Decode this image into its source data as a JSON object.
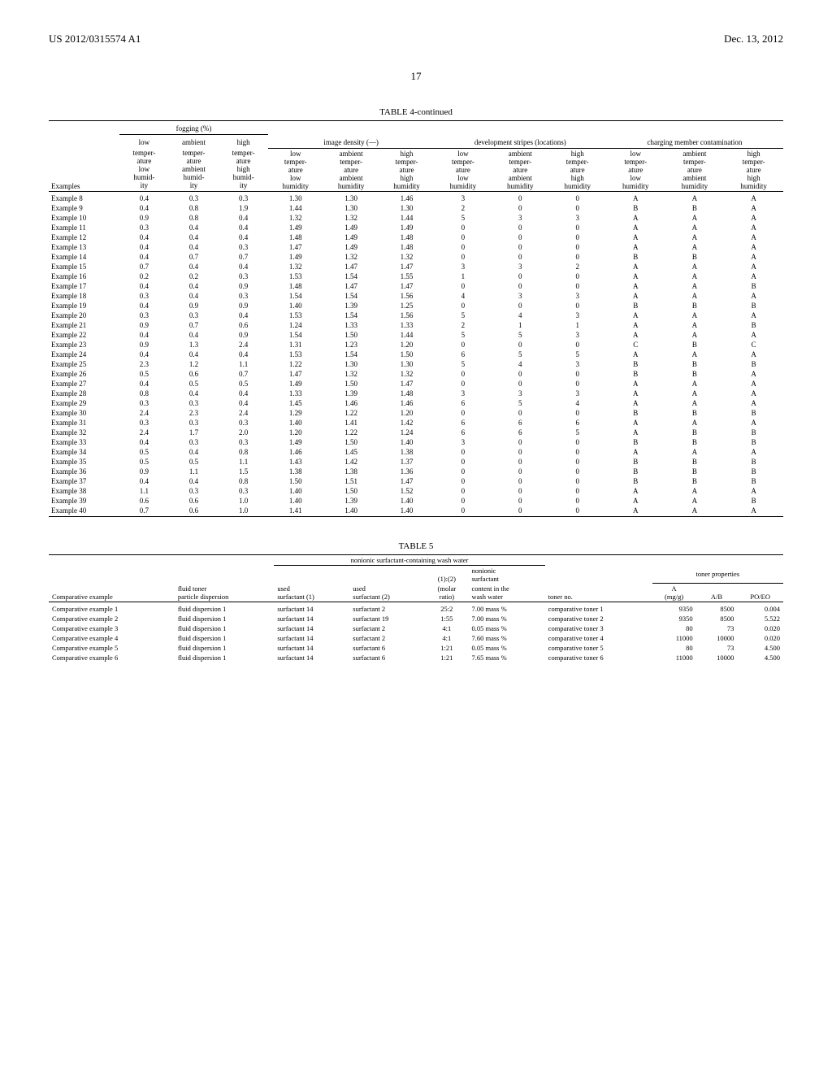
{
  "header": {
    "left": "US 2012/0315574 A1",
    "right": "Dec. 13, 2012",
    "page": "17"
  },
  "table4": {
    "title": "TABLE 4-continued",
    "groups": {
      "fogging": "fogging (%)",
      "density": "image density (—)",
      "stripes": "development stripes (locations)",
      "charging": "charging member contamination",
      "low": "low",
      "ambient": "ambient",
      "high": "high"
    },
    "subhead": {
      "examples": "Examples",
      "ltlh": "temper-\nature\nlow\nhumid-\nity",
      "atah": "temper-\nature\nambient\nhumid-\nity",
      "hthh": "temper-\nature\nhigh\nhumid-\nity",
      "ltlh2": "low\ntemper-\nature\nlow\nhumidity",
      "atah2": "ambient\ntemper-\nature\nambient\nhumidity",
      "hthh2": "high\ntemper-\nature\nhigh\nhumidity"
    },
    "rows": [
      [
        "Example 8",
        "0.4",
        "0.3",
        "0.3",
        "1.30",
        "1.30",
        "1.46",
        "3",
        "0",
        "0",
        "A",
        "A",
        "A"
      ],
      [
        "Example 9",
        "0.4",
        "0.8",
        "1.9",
        "1.44",
        "1.30",
        "1.30",
        "2",
        "0",
        "0",
        "B",
        "B",
        "A"
      ],
      [
        "Example 10",
        "0.9",
        "0.8",
        "0.4",
        "1.32",
        "1.32",
        "1.44",
        "5",
        "3",
        "3",
        "A",
        "A",
        "A"
      ],
      [
        "Example 11",
        "0.3",
        "0.4",
        "0.4",
        "1.49",
        "1.49",
        "1.49",
        "0",
        "0",
        "0",
        "A",
        "A",
        "A"
      ],
      [
        "Example 12",
        "0.4",
        "0.4",
        "0.4",
        "1.48",
        "1.49",
        "1.48",
        "0",
        "0",
        "0",
        "A",
        "A",
        "A"
      ],
      [
        "Example 13",
        "0.4",
        "0.4",
        "0.3",
        "1.47",
        "1.49",
        "1.48",
        "0",
        "0",
        "0",
        "A",
        "A",
        "A"
      ],
      [
        "Example 14",
        "0.4",
        "0.7",
        "0.7",
        "1.49",
        "1.32",
        "1.32",
        "0",
        "0",
        "0",
        "B",
        "B",
        "A"
      ],
      [
        "Example 15",
        "0.7",
        "0.4",
        "0.4",
        "1.32",
        "1.47",
        "1.47",
        "3",
        "3",
        "2",
        "A",
        "A",
        "A"
      ],
      [
        "Example 16",
        "0.2",
        "0.2",
        "0.3",
        "1.53",
        "1.54",
        "1.55",
        "1",
        "0",
        "0",
        "A",
        "A",
        "A"
      ],
      [
        "Example 17",
        "0.4",
        "0.4",
        "0.9",
        "1.48",
        "1.47",
        "1.47",
        "0",
        "0",
        "0",
        "A",
        "A",
        "B"
      ],
      [
        "Example 18",
        "0.3",
        "0.4",
        "0.3",
        "1.54",
        "1.54",
        "1.56",
        "4",
        "3",
        "3",
        "A",
        "A",
        "A"
      ],
      [
        "Example 19",
        "0.4",
        "0.9",
        "0.9",
        "1.40",
        "1.39",
        "1.25",
        "0",
        "0",
        "0",
        "B",
        "B",
        "B"
      ],
      [
        "Example 20",
        "0.3",
        "0.3",
        "0.4",
        "1.53",
        "1.54",
        "1.56",
        "5",
        "4",
        "3",
        "A",
        "A",
        "A"
      ],
      [
        "Example 21",
        "0.9",
        "0.7",
        "0.6",
        "1.24",
        "1.33",
        "1.33",
        "2",
        "1",
        "1",
        "A",
        "A",
        "B"
      ],
      [
        "Example 22",
        "0.4",
        "0.4",
        "0.9",
        "1.54",
        "1.50",
        "1.44",
        "5",
        "5",
        "3",
        "A",
        "A",
        "A"
      ],
      [
        "Example 23",
        "0.9",
        "1.3",
        "2.4",
        "1.31",
        "1.23",
        "1.20",
        "0",
        "0",
        "0",
        "C",
        "B",
        "C"
      ],
      [
        "Example 24",
        "0.4",
        "0.4",
        "0.4",
        "1.53",
        "1.54",
        "1.50",
        "6",
        "5",
        "5",
        "A",
        "A",
        "A"
      ],
      [
        "Example 25",
        "2.3",
        "1.2",
        "1.1",
        "1.22",
        "1.30",
        "1.30",
        "5",
        "4",
        "3",
        "B",
        "B",
        "B"
      ],
      [
        "Example 26",
        "0.5",
        "0.6",
        "0.7",
        "1.47",
        "1.32",
        "1.32",
        "0",
        "0",
        "0",
        "B",
        "B",
        "A"
      ],
      [
        "Example 27",
        "0.4",
        "0.5",
        "0.5",
        "1.49",
        "1.50",
        "1.47",
        "0",
        "0",
        "0",
        "A",
        "A",
        "A"
      ],
      [
        "Example 28",
        "0.8",
        "0.4",
        "0.4",
        "1.33",
        "1.39",
        "1.48",
        "3",
        "3",
        "3",
        "A",
        "A",
        "A"
      ],
      [
        "Example 29",
        "0.3",
        "0.3",
        "0.4",
        "1.45",
        "1.46",
        "1.46",
        "6",
        "5",
        "4",
        "A",
        "A",
        "A"
      ],
      [
        "Example 30",
        "2.4",
        "2.3",
        "2.4",
        "1.29",
        "1.22",
        "1.20",
        "0",
        "0",
        "0",
        "B",
        "B",
        "B"
      ],
      [
        "Example 31",
        "0.3",
        "0.3",
        "0.3",
        "1.40",
        "1.41",
        "1.42",
        "6",
        "6",
        "6",
        "A",
        "A",
        "A"
      ],
      [
        "Example 32",
        "2.4",
        "1.7",
        "2.0",
        "1.20",
        "1.22",
        "1.24",
        "6",
        "6",
        "5",
        "A",
        "B",
        "B"
      ],
      [
        "Example 33",
        "0.4",
        "0.3",
        "0.3",
        "1.49",
        "1.50",
        "1.40",
        "3",
        "0",
        "0",
        "B",
        "B",
        "B"
      ],
      [
        "Example 34",
        "0.5",
        "0.4",
        "0.8",
        "1.46",
        "1.45",
        "1.38",
        "0",
        "0",
        "0",
        "A",
        "A",
        "A"
      ],
      [
        "Example 35",
        "0.5",
        "0.5",
        "1.1",
        "1.43",
        "1.42",
        "1.37",
        "0",
        "0",
        "0",
        "B",
        "B",
        "B"
      ],
      [
        "Example 36",
        "0.9",
        "1.1",
        "1.5",
        "1.38",
        "1.38",
        "1.36",
        "0",
        "0",
        "0",
        "B",
        "B",
        "B"
      ],
      [
        "Example 37",
        "0.4",
        "0.4",
        "0.8",
        "1.50",
        "1.51",
        "1.47",
        "0",
        "0",
        "0",
        "B",
        "B",
        "B"
      ],
      [
        "Example 38",
        "1.1",
        "0.3",
        "0.3",
        "1.40",
        "1.50",
        "1.52",
        "0",
        "0",
        "0",
        "A",
        "A",
        "A"
      ],
      [
        "Example 39",
        "0.6",
        "0.6",
        "1.0",
        "1.40",
        "1.39",
        "1.40",
        "0",
        "0",
        "0",
        "A",
        "A",
        "B"
      ],
      [
        "Example 40",
        "0.7",
        "0.6",
        "1.0",
        "1.41",
        "1.40",
        "1.40",
        "0",
        "0",
        "0",
        "A",
        "A",
        "A"
      ]
    ]
  },
  "table5": {
    "title": "TABLE 5",
    "hdr": {
      "wash": "nonionic surfactant-containing wash water",
      "toner_props": "toner properties",
      "comp": "Comparative example",
      "fluid": "fluid toner\nparticle dispersion",
      "s1": "used\nsurfactant (1)",
      "s2": "used\nsurfactant (2)",
      "ratio": "(1):(2)\n(molar\nratio)",
      "content": "nonionic\nsurfactant\ncontent in the\nwash water",
      "tno": "toner no.",
      "A": "A\n(mg/g)",
      "AB": "A/B",
      "PO": "PO/EO"
    },
    "rows": [
      [
        "Comparative example 1",
        "fluid dispersion 1",
        "surfactant 14",
        "surfactant 2",
        "25:2",
        "7.00 mass %",
        "comparative toner 1",
        "9350",
        "8500",
        "0.004"
      ],
      [
        "Comparative example 2",
        "fluid dispersion 1",
        "surfactant 14",
        "surfactant 19",
        "1:55",
        "7.00 mass %",
        "comparative toner 2",
        "9350",
        "8500",
        "5.522"
      ],
      [
        "Comparative example 3",
        "fluid dispersion 1",
        "surfactant 14",
        "surfactant 2",
        "4:1",
        "0.05 mass %",
        "comparative toner 3",
        "80",
        "73",
        "0.020"
      ],
      [
        "Comparative example 4",
        "fluid dispersion 1",
        "surfactant 14",
        "surfactant 2",
        "4:1",
        "7.60 mass %",
        "comparative toner 4",
        "11000",
        "10000",
        "0.020"
      ],
      [
        "Comparative example 5",
        "fluid dispersion 1",
        "surfactant 14",
        "surfactant 6",
        "1:21",
        "0.05 mass %",
        "comparative toner 5",
        "80",
        "73",
        "4.500"
      ],
      [
        "Comparative example 6",
        "fluid dispersion 1",
        "surfactant 14",
        "surfactant 6",
        "1:21",
        "7.65 mass %",
        "comparative toner 6",
        "11000",
        "10000",
        "4.500"
      ]
    ]
  }
}
